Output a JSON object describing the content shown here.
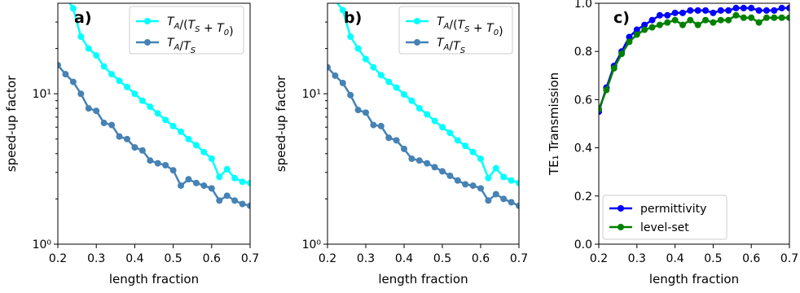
{
  "chart_data": [
    {
      "type": "line",
      "panel_label": "a)",
      "xlabel": "length fraction",
      "ylabel": "speed-up factor",
      "xlim": [
        0.2,
        0.7
      ],
      "ylim": [
        1,
        40
      ],
      "yscale": "log",
      "xticks": [
        "0.2",
        "0.3",
        "0.4",
        "0.5",
        "0.6",
        "0.7"
      ],
      "yticks": [
        "10⁰",
        "10¹"
      ],
      "legend_position": "top-right",
      "x": [
        0.2,
        0.22,
        0.24,
        0.26,
        0.28,
        0.3,
        0.32,
        0.34,
        0.36,
        0.38,
        0.4,
        0.42,
        0.44,
        0.46,
        0.48,
        0.5,
        0.52,
        0.54,
        0.56,
        0.58,
        0.6,
        0.62,
        0.64,
        0.66,
        0.68,
        0.7
      ],
      "series": [
        {
          "name": "T_A/(T_S + T_0)",
          "color": "#00ffff",
          "values": [
            48,
            44,
            37,
            24,
            20,
            18,
            15.2,
            13.5,
            12.2,
            11.1,
            10.0,
            9.0,
            8.2,
            7.4,
            6.7,
            6.1,
            5.6,
            5.0,
            4.55,
            4.1,
            3.7,
            2.8,
            3.15,
            2.75,
            2.6,
            2.55
          ]
        },
        {
          "name": "T_A/T_S",
          "color": "#4682b4",
          "values": [
            15.5,
            13.5,
            12.0,
            10.0,
            8.0,
            7.7,
            6.4,
            6.2,
            5.2,
            5.0,
            4.4,
            4.2,
            3.6,
            3.45,
            3.35,
            3.1,
            2.45,
            2.7,
            2.55,
            2.45,
            2.35,
            1.95,
            2.1,
            1.95,
            1.85,
            1.8
          ]
        }
      ]
    },
    {
      "type": "line",
      "panel_label": "b)",
      "xlabel": "length fraction",
      "ylabel": "speed-up factor",
      "xlim": [
        0.2,
        0.7
      ],
      "ylim": [
        1,
        40
      ],
      "yscale": "log",
      "xticks": [
        "0.2",
        "0.3",
        "0.4",
        "0.5",
        "0.6",
        "0.7"
      ],
      "yticks": [
        "10⁰",
        "10¹"
      ],
      "legend_position": "top-right",
      "x": [
        0.2,
        0.22,
        0.24,
        0.26,
        0.28,
        0.3,
        0.32,
        0.34,
        0.36,
        0.38,
        0.4,
        0.42,
        0.44,
        0.46,
        0.48,
        0.5,
        0.52,
        0.54,
        0.56,
        0.58,
        0.6,
        0.62,
        0.64,
        0.66,
        0.68,
        0.7
      ],
      "series": [
        {
          "name": "T_A/(T_S + T_0)",
          "color": "#00ffff",
          "values": [
            46,
            42,
            36,
            24,
            20,
            17,
            15.0,
            13.3,
            12.0,
            11.0,
            9.9,
            9.0,
            8.0,
            7.3,
            6.6,
            6.0,
            5.5,
            4.9,
            4.5,
            4.1,
            3.7,
            2.75,
            3.2,
            2.8,
            2.65,
            2.55
          ]
        },
        {
          "name": "T_A/T_S",
          "color": "#4682b4",
          "values": [
            15.0,
            13.2,
            11.8,
            9.8,
            7.8,
            7.5,
            6.2,
            6.1,
            5.1,
            4.9,
            4.3,
            3.7,
            3.6,
            3.45,
            3.25,
            3.05,
            2.85,
            2.65,
            2.5,
            2.45,
            2.35,
            1.95,
            2.15,
            2.0,
            1.9,
            1.8
          ]
        }
      ]
    },
    {
      "type": "line",
      "panel_label": "c)",
      "xlabel": "length fraction",
      "ylabel": "TE₁ Transmission",
      "xlim": [
        0.2,
        0.7
      ],
      "ylim": [
        0.0,
        1.0
      ],
      "yscale": "linear",
      "xticks": [
        "0.2",
        "0.3",
        "0.4",
        "0.5",
        "0.6",
        "0.7"
      ],
      "yticks": [
        "0.0",
        "0.2",
        "0.4",
        "0.6",
        "0.8",
        "1.0"
      ],
      "legend_position": "bottom-left",
      "x": [
        0.2,
        0.22,
        0.24,
        0.26,
        0.28,
        0.3,
        0.32,
        0.34,
        0.36,
        0.38,
        0.4,
        0.42,
        0.44,
        0.46,
        0.48,
        0.5,
        0.52,
        0.54,
        0.56,
        0.58,
        0.6,
        0.62,
        0.64,
        0.66,
        0.68,
        0.7
      ],
      "series": [
        {
          "name": "permittivity",
          "color": "#0000ff",
          "values": [
            0.55,
            0.65,
            0.74,
            0.8,
            0.86,
            0.89,
            0.91,
            0.93,
            0.95,
            0.95,
            0.96,
            0.96,
            0.97,
            0.97,
            0.97,
            0.96,
            0.97,
            0.97,
            0.98,
            0.98,
            0.98,
            0.97,
            0.97,
            0.97,
            0.98,
            0.98
          ]
        },
        {
          "name": "level-set",
          "color": "#008000",
          "values": [
            0.56,
            0.64,
            0.73,
            0.79,
            0.84,
            0.87,
            0.89,
            0.9,
            0.91,
            0.92,
            0.93,
            0.91,
            0.93,
            0.91,
            0.93,
            0.92,
            0.93,
            0.93,
            0.95,
            0.94,
            0.94,
            0.92,
            0.94,
            0.94,
            0.94,
            0.94
          ]
        }
      ]
    }
  ]
}
